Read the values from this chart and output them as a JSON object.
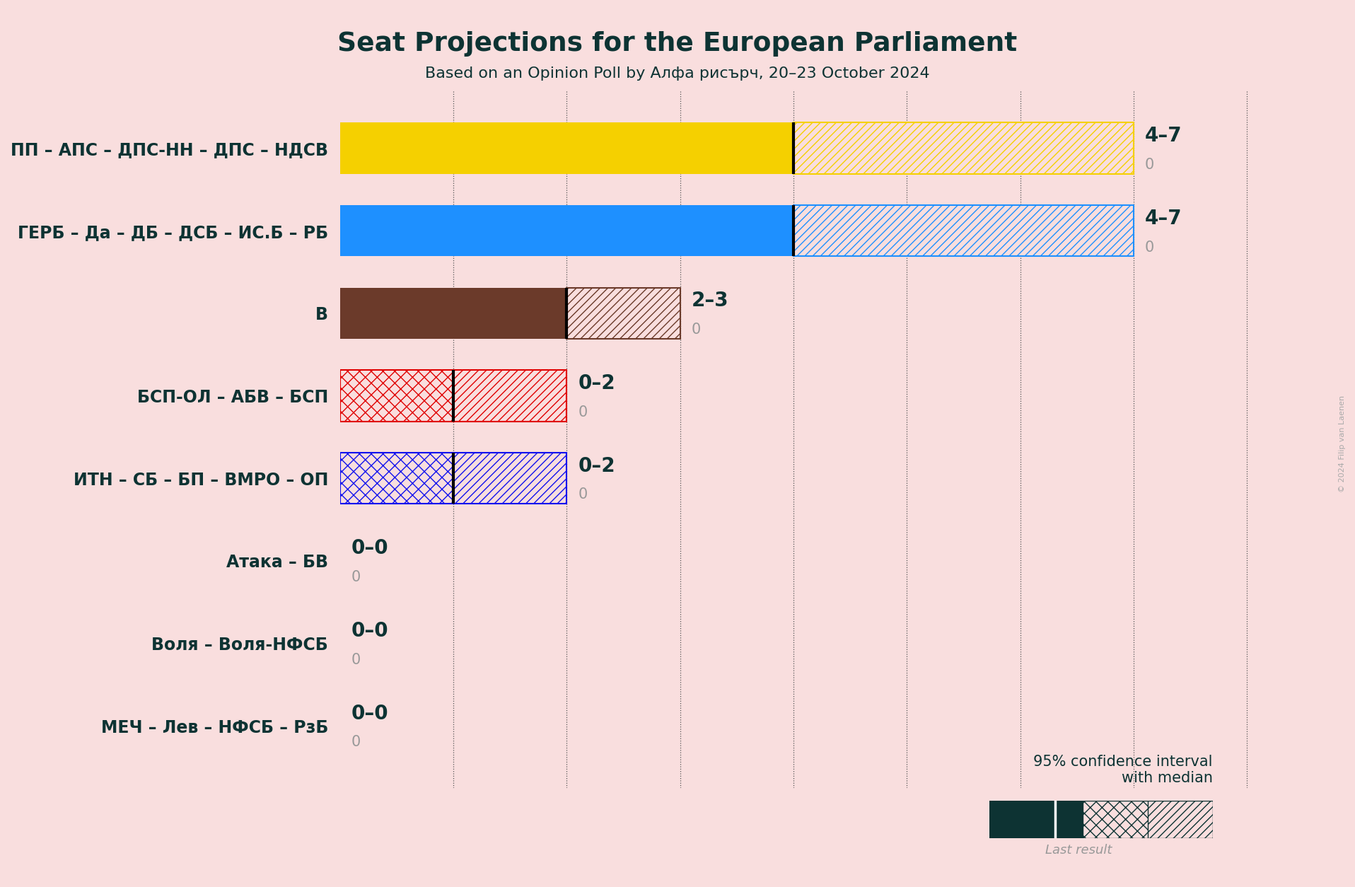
{
  "title": "Seat Projections for the European Parliament",
  "subtitle": "Based on an Opinion Poll by Алфа рисърч, 20–23 October 2024",
  "background_color": "#f9dede",
  "text_color": "#0d3333",
  "parties": [
    "ПП – АПС – ДПС-НН – ДПС – НДСВ",
    "ГЕРБ – Да – ДБ – ДСБ – ИС.Б – РБ",
    "В",
    "БСП-ОЛ – АБВ – БСП",
    "ИТН – СБ – БП – ВМРО – ОП",
    "Атака – БВ",
    "Воля – Воля-НФСБ",
    "МЕЧ – Лев – НФСБ – РзБ"
  ],
  "ci_low": [
    4,
    4,
    2,
    0,
    0,
    0,
    0,
    0
  ],
  "median_seats": [
    4,
    4,
    2,
    1,
    1,
    0,
    0,
    0
  ],
  "ci_high": [
    7,
    7,
    3,
    2,
    2,
    0,
    0,
    0
  ],
  "last_result_vals": [
    0,
    0,
    0,
    0,
    0,
    0,
    0,
    0
  ],
  "bar_colors": [
    "#f5d000",
    "#1e90ff",
    "#6b3a2a",
    "#e00000",
    "#1111ee",
    "#333333",
    "#333333",
    "#0d3333"
  ],
  "labels": [
    "4–7",
    "4–7",
    "2–3",
    "0–2",
    "0–2",
    "0–0",
    "0–0",
    "0–0"
  ],
  "xlim_max": 8,
  "copyright": "© 2024 Filip van Laenen"
}
